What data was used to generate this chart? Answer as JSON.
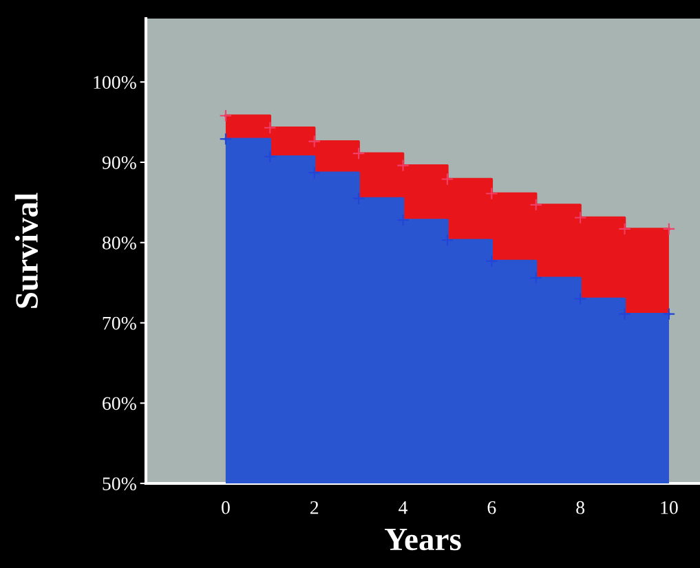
{
  "chart_data": {
    "type": "area",
    "xlabel": "Years",
    "ylabel": "Survival",
    "series": [
      {
        "color": "#e8161a",
        "x": [
          0,
          1,
          1,
          2,
          2,
          3,
          3,
          4,
          4,
          5,
          5,
          6,
          6,
          7,
          7,
          8,
          8,
          9,
          9,
          10
        ],
        "values": [
          95.8,
          95.8,
          94.3,
          94.3,
          92.6,
          92.6,
          91.1,
          91.1,
          89.6,
          89.6,
          87.9,
          87.9,
          86.1,
          86.1,
          84.7,
          84.7,
          83.1,
          83.1,
          81.7,
          81.7
        ]
      },
      {
        "color": "#2a55d0",
        "x": [
          0,
          1,
          1,
          2,
          2,
          3,
          3,
          4,
          4,
          5,
          5,
          6,
          6,
          7,
          7,
          8,
          8,
          9,
          9,
          10
        ],
        "values": [
          92.9,
          92.9,
          90.7,
          90.7,
          88.7,
          88.7,
          85.5,
          85.5,
          82.8,
          82.8,
          80.3,
          80.3,
          77.7,
          77.7,
          75.6,
          75.6,
          73.0,
          73.0,
          71.1,
          71.1
        ]
      },
      {
        "type": "scatter",
        "marker": "cross",
        "color": "#f0406a",
        "x": [
          0,
          1,
          2,
          3,
          4,
          5,
          6,
          7,
          8,
          9,
          10
        ],
        "values": [
          95.8,
          94.3,
          92.6,
          91.1,
          89.6,
          87.9,
          86.1,
          84.7,
          83.1,
          81.7,
          81.7
        ]
      },
      {
        "type": "scatter",
        "marker": "cross",
        "color": "#2244d8",
        "x": [
          0,
          1,
          2,
          3,
          4,
          5,
          6,
          7,
          8,
          9,
          10
        ],
        "values": [
          92.9,
          90.7,
          88.7,
          85.5,
          82.8,
          80.3,
          77.7,
          75.6,
          73.0,
          71.1,
          71.1
        ]
      }
    ],
    "xlim": [
      -1.8,
      10.7
    ],
    "ylim": [
      50,
      107.9
    ],
    "xticks": [
      0,
      2,
      4,
      6,
      8,
      10
    ],
    "yticks": [
      {
        "value": 50,
        "label": "50%"
      },
      {
        "value": 60,
        "label": "60%"
      },
      {
        "value": 70,
        "label": "70%"
      },
      {
        "value": 80,
        "label": "80%"
      },
      {
        "value": 90,
        "label": "90%"
      },
      {
        "value": 100,
        "label": "100%"
      }
    ],
    "grid": false,
    "legend": false
  }
}
